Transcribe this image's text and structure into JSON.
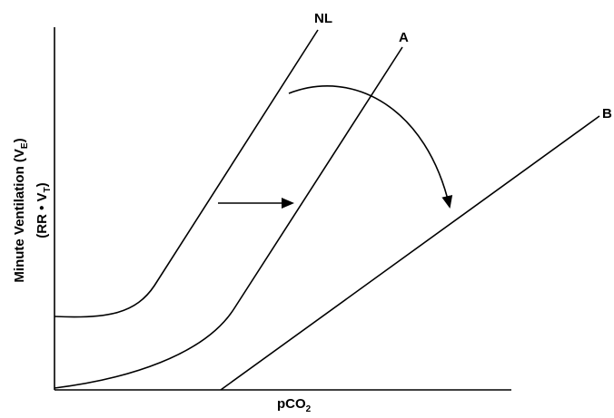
{
  "axes": {
    "x": {
      "label": "pCO",
      "label_sub": "2"
    },
    "y": {
      "line1": "Minute Ventilation (V",
      "line1_sub": "E",
      "line1_close": ")",
      "line2": "(RR • V",
      "line2_sub": "T",
      "line2_close": ")"
    }
  },
  "curves": [
    {
      "id": "NL",
      "label": "NL"
    },
    {
      "id": "A",
      "label": "A"
    },
    {
      "id": "B",
      "label": "B"
    }
  ],
  "arrows": [
    {
      "id": "shift-arrow",
      "from": "NL",
      "to": "A"
    },
    {
      "id": "curved-arrow",
      "from": "A",
      "to": "B"
    }
  ],
  "colors": {
    "line": "#000000",
    "background": "#ffffff"
  }
}
